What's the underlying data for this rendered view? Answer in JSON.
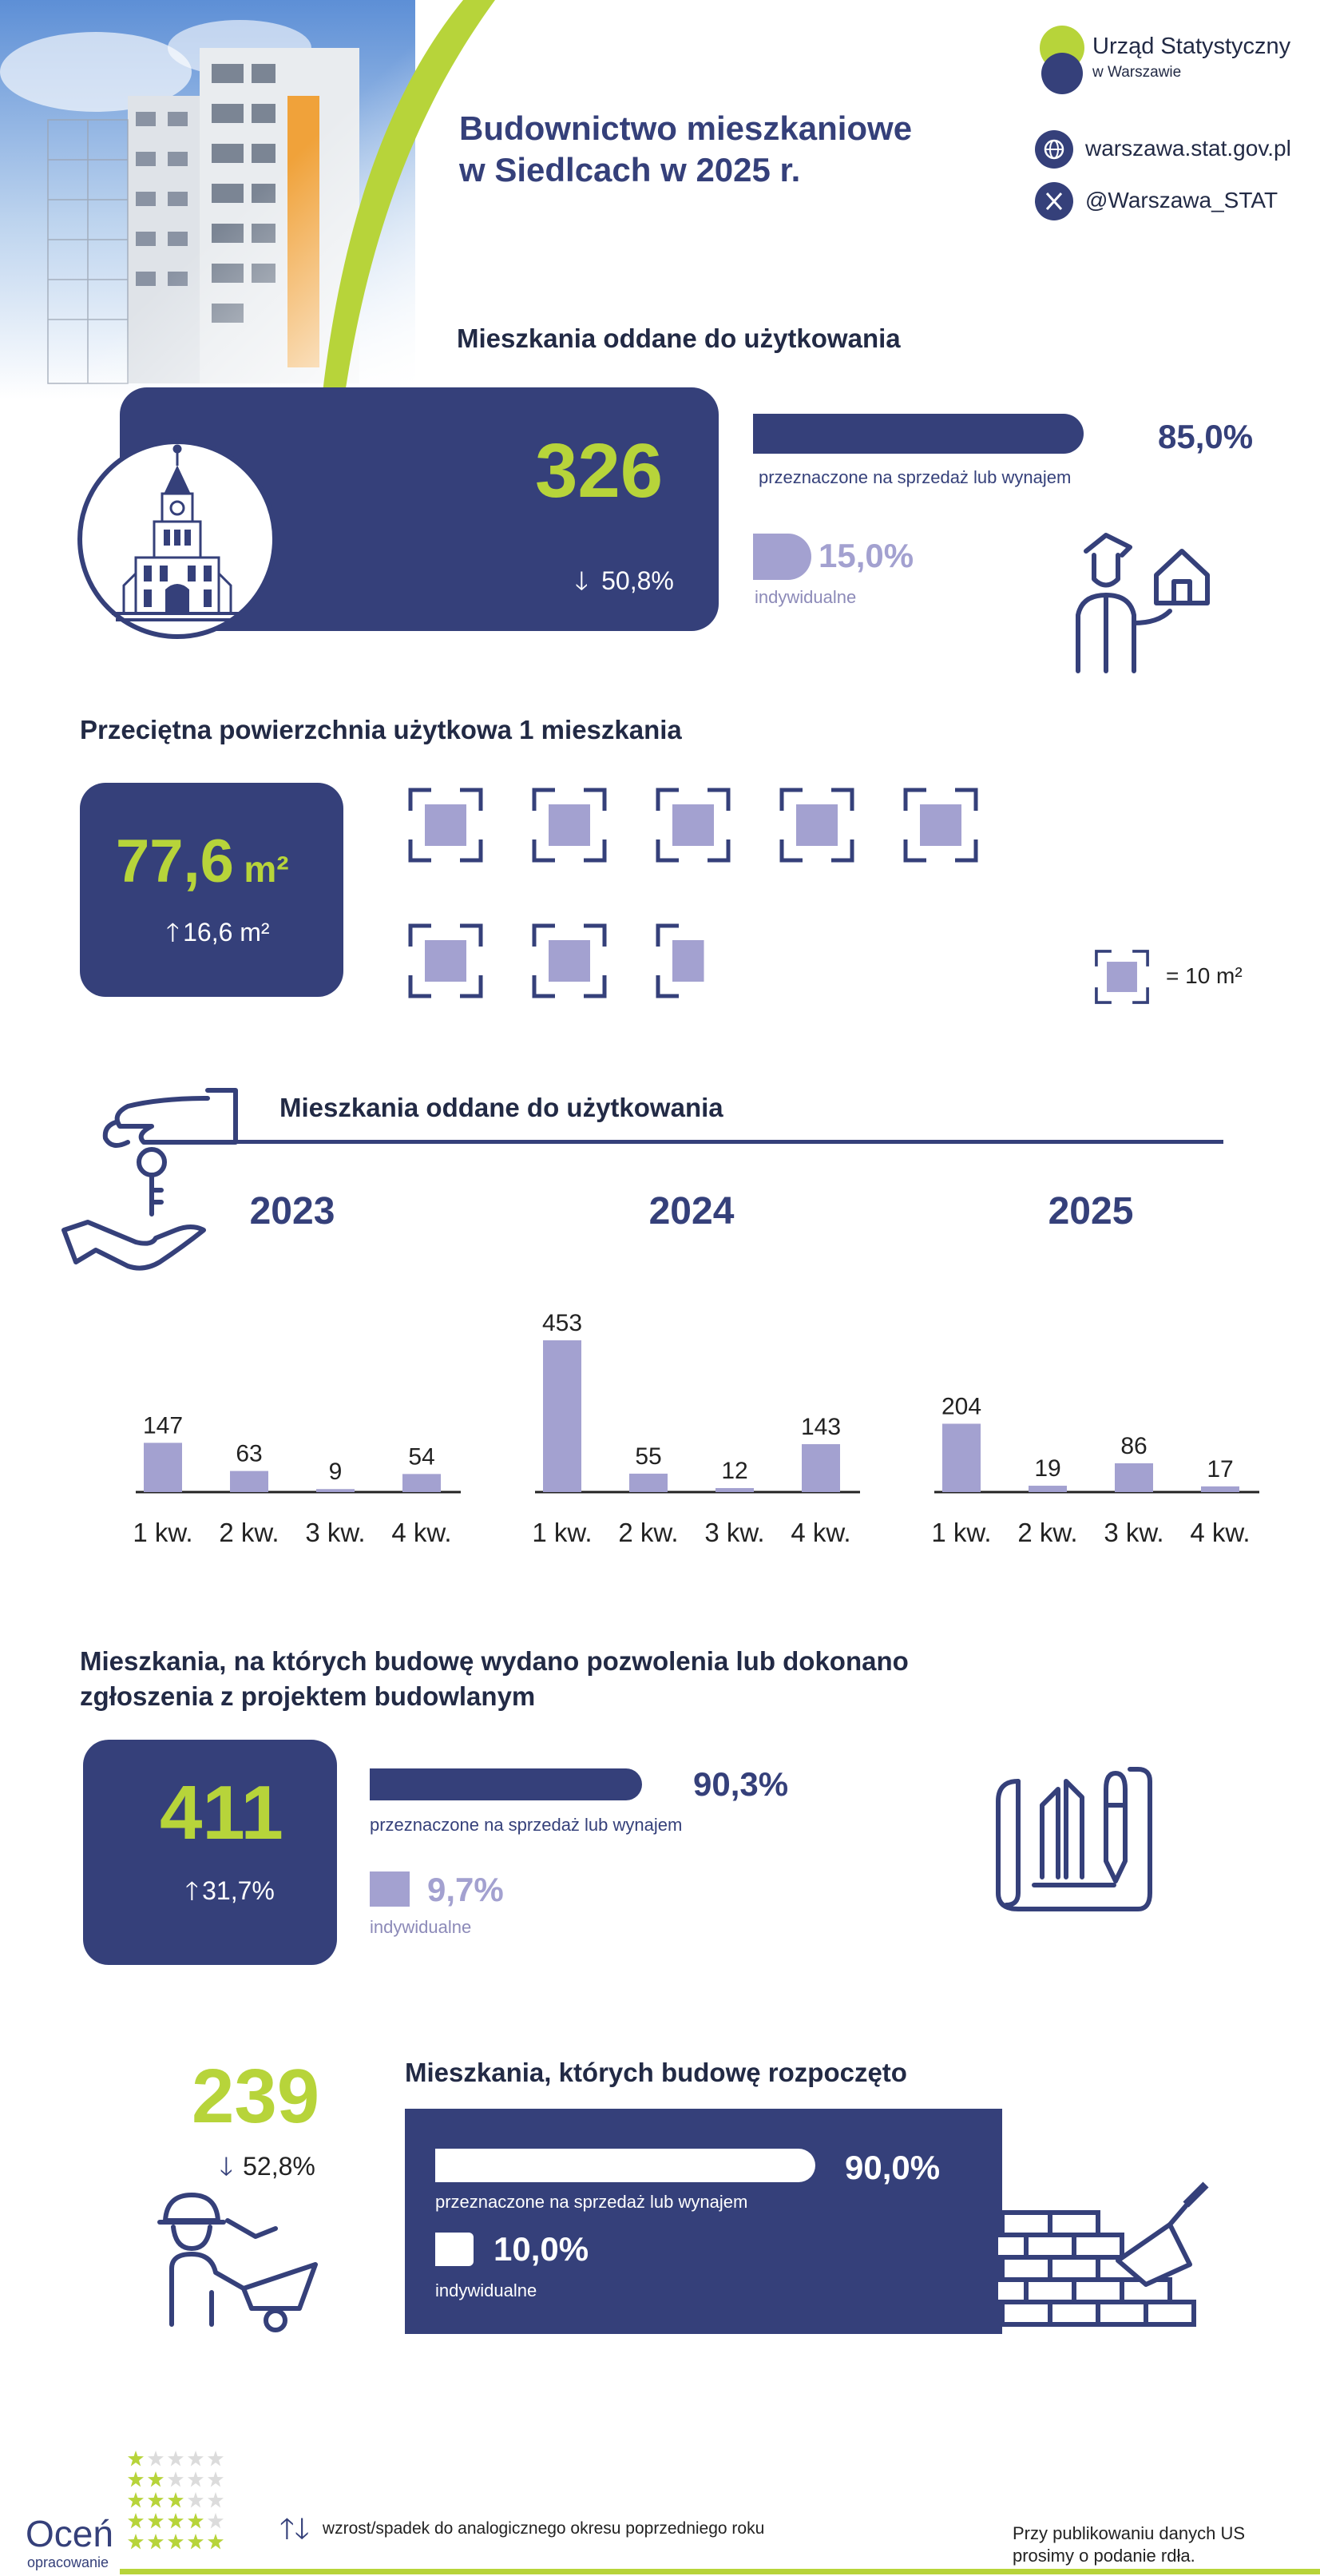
{
  "header": {
    "title_line1": "Budownictwo mieszkaniowe",
    "title_line2": "w Siedlcach w 2025 r.",
    "org_name": "Urząd Statystyczny",
    "org_sub": "w Warszawie",
    "website": "warszawa.stat.gov.pl",
    "twitter": "@Warszawa_STAT"
  },
  "section1": {
    "heading": "Mieszkania oddane do użytkowania",
    "value": "326",
    "change": "50,8%",
    "change_dir": "down",
    "sale_pct": "85,0%",
    "sale_label": "przeznaczone na sprzedaż lub wynajem",
    "indiv_pct": "15,0%",
    "indiv_label": "indywidualne",
    "sale_share": 85.0,
    "indiv_share": 15.0
  },
  "section2": {
    "heading": "Przeciętna powierzchnia użytkowa 1 mieszkania",
    "value": "77,6",
    "unit": "m²",
    "change": "16,6 m²",
    "change_dir": "up",
    "legend": "= 10 m²",
    "squares_value": 77.6
  },
  "section3": {
    "heading": "Mieszkania oddane do użytkowania"
  },
  "chart_data": {
    "type": "bar",
    "groups": [
      {
        "year": "2023",
        "categories": [
          "1 kw.",
          "2 kw.",
          "3 kw.",
          "4 kw."
        ],
        "values": [
          147,
          63,
          9,
          54
        ]
      },
      {
        "year": "2024",
        "categories": [
          "1 kw.",
          "2 kw.",
          "3 kw.",
          "4 kw."
        ],
        "values": [
          453,
          55,
          12,
          143
        ]
      },
      {
        "year": "2025",
        "categories": [
          "1 kw.",
          "2 kw.",
          "3 kw.",
          "4 kw."
        ],
        "values": [
          204,
          19,
          86,
          17
        ]
      }
    ],
    "title": "Mieszkania oddane do użytkowania",
    "ylim": [
      0,
      453
    ],
    "color": "#a3a1d0"
  },
  "section4": {
    "heading_line1": "Mieszkania, na których budowę wydano pozwolenia lub dokonano",
    "heading_line2": "zgłoszenia z projektem budowlanym",
    "value": "411",
    "change": "31,7%",
    "change_dir": "up",
    "sale_pct": "90,3%",
    "sale_label": "przeznaczone na sprzedaż lub wynajem",
    "indiv_pct": "9,7%",
    "indiv_label": "indywidualne",
    "sale_share": 90.3,
    "indiv_share": 9.7
  },
  "section5": {
    "heading": "Mieszkania, których budowę rozpoczęto",
    "value": "239",
    "change": "52,8%",
    "change_dir": "down",
    "sale_pct": "90,0%",
    "sale_label": "przeznaczone na sprzedaż lub wynajem",
    "indiv_pct": "10,0%",
    "indiv_label": "indywidualne",
    "sale_share": 90.0,
    "indiv_share": 10.0
  },
  "footer": {
    "rate_big": "Oceń",
    "rate_small": "opracowanie",
    "legend": "wzrost/spadek do analogicznego okresu poprzedniego roku",
    "note_line1": "Przy publikowaniu danych US",
    "note_line2": "prosimy o podanie rdła."
  },
  "colors": {
    "navy": "#35407a",
    "lime": "#b7d43a",
    "lavender": "#a3a1d0"
  }
}
